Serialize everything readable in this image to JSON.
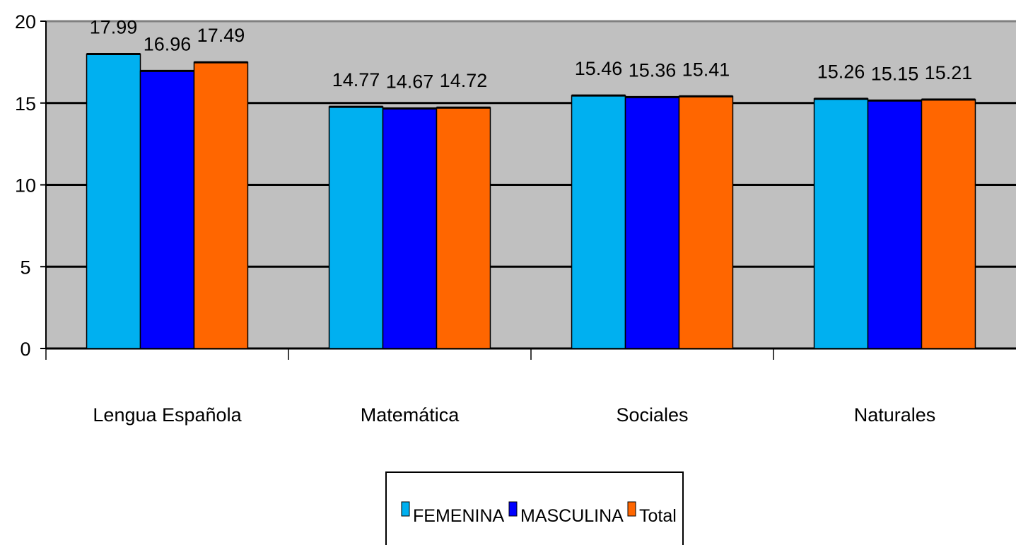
{
  "chart_data": {
    "type": "bar",
    "categories": [
      "Lengua Española",
      "Matemática",
      "Sociales",
      "Naturales"
    ],
    "series": [
      {
        "name": "FEMENINA",
        "values": [
          17.99,
          14.77,
          15.46,
          15.26
        ],
        "color": "#00b0f0"
      },
      {
        "name": "MASCULINA",
        "values": [
          16.96,
          14.67,
          15.36,
          15.15
        ],
        "color": "#0000ff"
      },
      {
        "name": "Total",
        "values": [
          17.49,
          14.72,
          15.41,
          15.21
        ],
        "color": "#ff6600"
      }
    ],
    "data_labels": [
      [
        "17.99",
        "14.77",
        "15.46",
        "15.26"
      ],
      [
        "16.96",
        "14.67",
        "15.36",
        "15.15"
      ],
      [
        "17.49",
        "14.72",
        "15.41",
        "15.21"
      ]
    ],
    "yticks": [
      "0",
      "5",
      "10",
      "15",
      "20"
    ],
    "ylim": [
      0,
      20
    ],
    "grid": true,
    "legend_position": "bottom",
    "plot_background": "#c0c0c0"
  }
}
